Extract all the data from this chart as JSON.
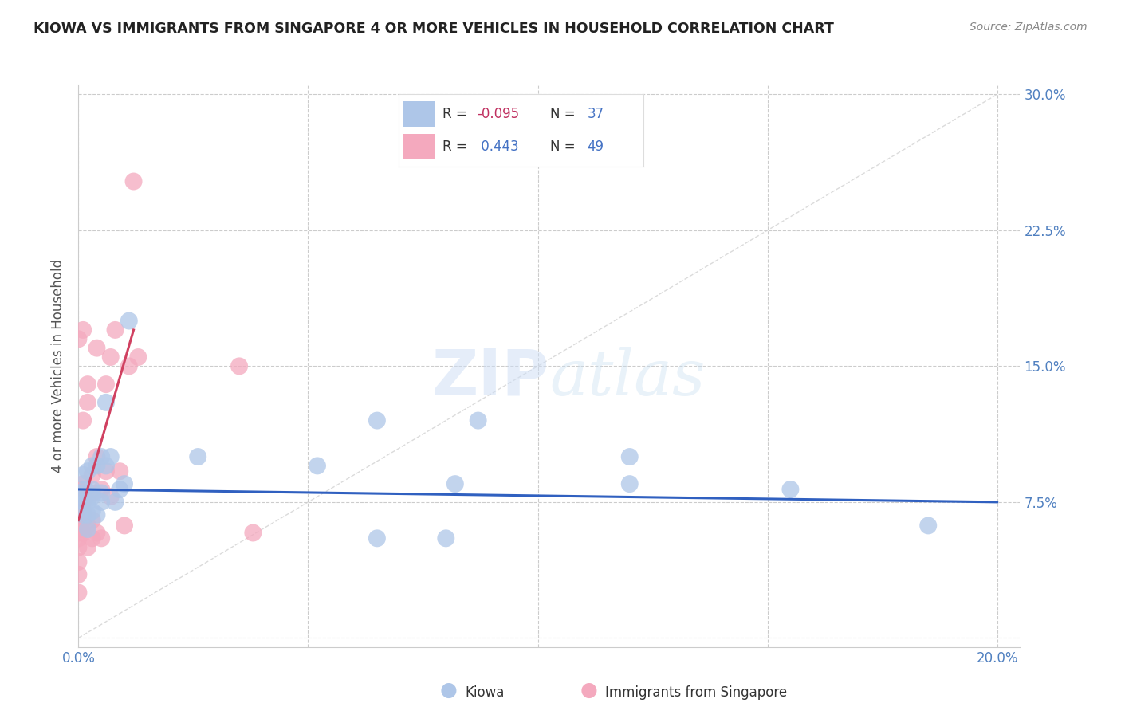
{
  "title": "KIOWA VS IMMIGRANTS FROM SINGAPORE 4 OR MORE VEHICLES IN HOUSEHOLD CORRELATION CHART",
  "source": "Source: ZipAtlas.com",
  "ylabel": "4 or more Vehicles in Household",
  "xlim": [
    0.0,
    0.205
  ],
  "ylim": [
    -0.005,
    0.305
  ],
  "xtick_positions": [
    0.0,
    0.05,
    0.1,
    0.15,
    0.2
  ],
  "ytick_positions": [
    0.0,
    0.075,
    0.15,
    0.225,
    0.3
  ],
  "kiowa_color": "#aec6e8",
  "singapore_color": "#f4a9be",
  "trend_blue_color": "#3060c0",
  "trend_pink_color": "#d04060",
  "grid_color": "#cccccc",
  "R1": "-0.095",
  "N1": "37",
  "R2": "0.443",
  "N2": "49",
  "kiowa_x": [
    0.001,
    0.001,
    0.001,
    0.001,
    0.0015,
    0.0015,
    0.002,
    0.002,
    0.002,
    0.002,
    0.003,
    0.003,
    0.003,
    0.003,
    0.004,
    0.004,
    0.005,
    0.005,
    0.005,
    0.006,
    0.006,
    0.007,
    0.008,
    0.009,
    0.01,
    0.011,
    0.026,
    0.052,
    0.065,
    0.082,
    0.12,
    0.155,
    0.087,
    0.12,
    0.065,
    0.08,
    0.185
  ],
  "kiowa_y": [
    0.068,
    0.075,
    0.08,
    0.09,
    0.075,
    0.082,
    0.06,
    0.068,
    0.075,
    0.092,
    0.07,
    0.078,
    0.082,
    0.095,
    0.068,
    0.095,
    0.075,
    0.08,
    0.1,
    0.13,
    0.095,
    0.1,
    0.075,
    0.082,
    0.085,
    0.175,
    0.1,
    0.095,
    0.12,
    0.085,
    0.1,
    0.082,
    0.12,
    0.085,
    0.055,
    0.055,
    0.062
  ],
  "singapore_x": [
    0.0,
    0.0,
    0.0,
    0.0,
    0.0,
    0.0,
    0.0,
    0.0,
    0.0,
    0.0,
    0.0,
    0.0,
    0.0,
    0.0,
    0.0005,
    0.001,
    0.001,
    0.001,
    0.001,
    0.001,
    0.001,
    0.001,
    0.002,
    0.002,
    0.002,
    0.003,
    0.003,
    0.003,
    0.004,
    0.004,
    0.005,
    0.005,
    0.006,
    0.006,
    0.007,
    0.007,
    0.008,
    0.009,
    0.01,
    0.011,
    0.012,
    0.013,
    0.035,
    0.038,
    0.002,
    0.003,
    0.004,
    0.0,
    0.001
  ],
  "singapore_y": [
    0.025,
    0.035,
    0.042,
    0.05,
    0.055,
    0.058,
    0.06,
    0.062,
    0.065,
    0.068,
    0.07,
    0.072,
    0.075,
    0.082,
    0.06,
    0.058,
    0.065,
    0.07,
    0.075,
    0.08,
    0.085,
    0.12,
    0.05,
    0.062,
    0.13,
    0.055,
    0.065,
    0.08,
    0.058,
    0.1,
    0.055,
    0.082,
    0.092,
    0.14,
    0.078,
    0.155,
    0.17,
    0.092,
    0.062,
    0.15,
    0.252,
    0.155,
    0.15,
    0.058,
    0.14,
    0.09,
    0.16,
    0.165,
    0.17
  ]
}
